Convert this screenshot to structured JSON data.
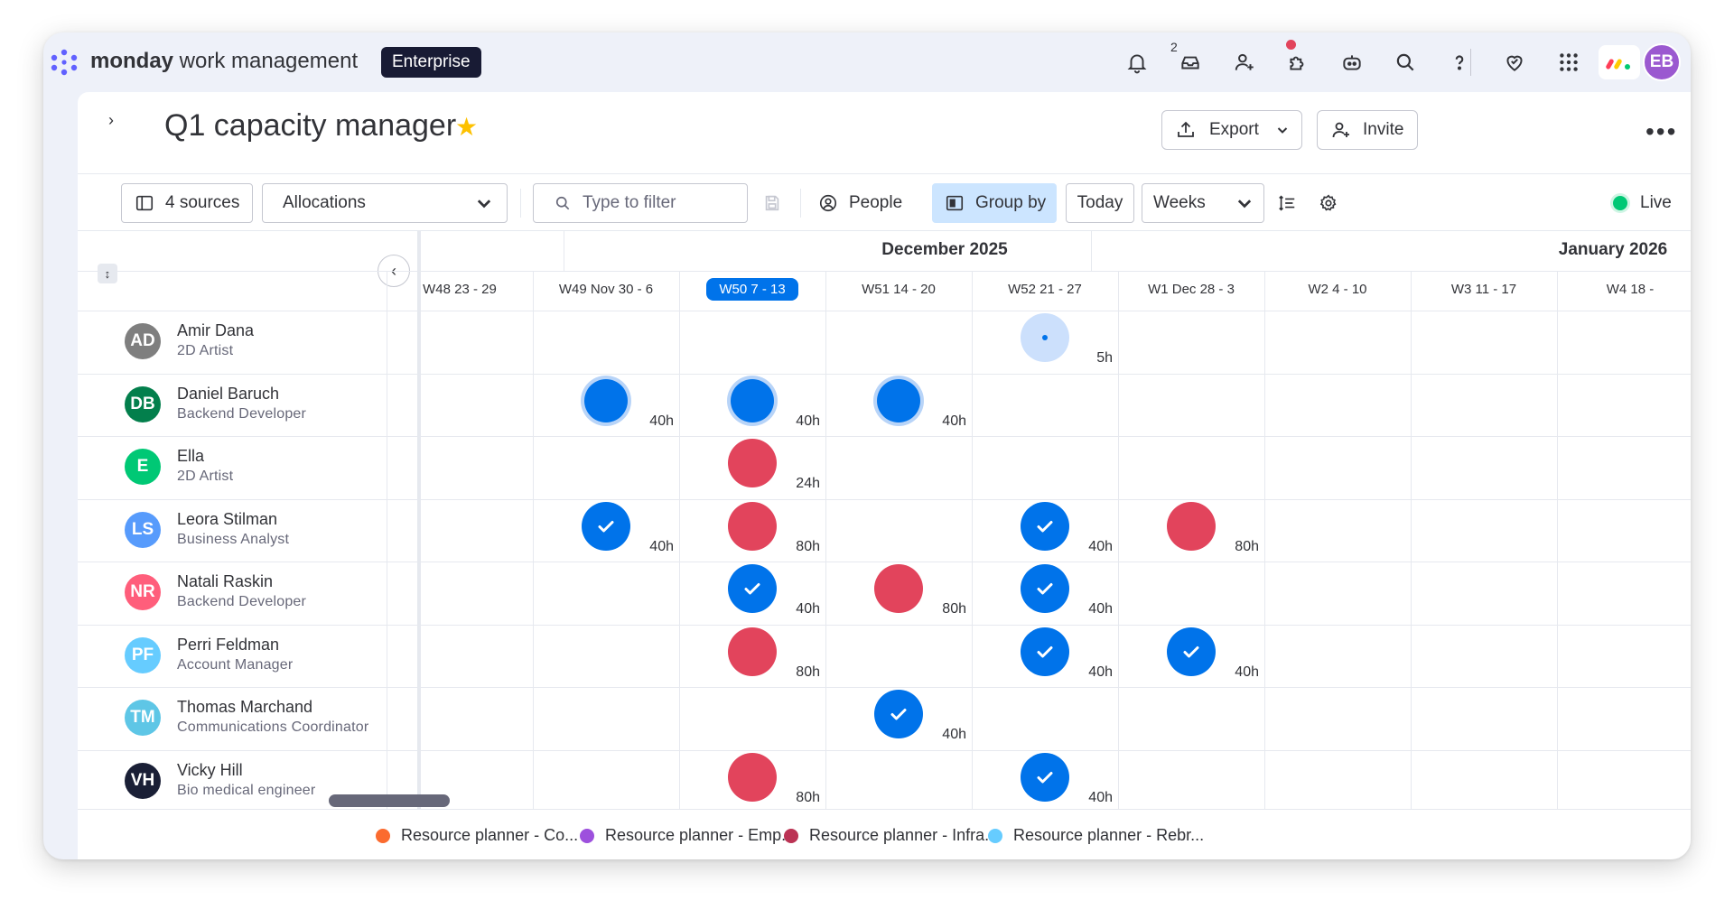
{
  "app": {
    "brand_bold": "monday",
    "brand_rest": " work management",
    "plan_badge": "Enterprise",
    "notification_count": "2",
    "user_initials": "EB"
  },
  "page": {
    "title": "Q1 capacity manager",
    "export_label": "Export",
    "invite_label": "Invite"
  },
  "toolbar": {
    "sources_label": "4 sources",
    "view_select": "Allocations",
    "filter_placeholder": "Type to filter",
    "people_label": "People",
    "group_by_label": "Group by",
    "today_label": "Today",
    "range_select": "Weeks",
    "live_label": "Live"
  },
  "timeline": {
    "months": [
      "December 2025",
      "January 2026"
    ],
    "weeks": [
      "W48 23 - 29",
      "W49 Nov 30 - 6",
      "W50 7 - 13",
      "W51 14 - 20",
      "W52 21 - 27",
      "W1 Dec 28 - 3",
      "W2 4 - 10",
      "W3 11 - 17",
      "W4 18 -"
    ],
    "current_week_index": 2
  },
  "people": [
    {
      "initials": "AD",
      "name": "Amir Dana",
      "role": "2D Artist",
      "color": "#7f7f7f",
      "allocations": [
        {
          "week": 4,
          "type": "light",
          "hours": "5h"
        }
      ]
    },
    {
      "initials": "DB",
      "name": "Daniel Baruch",
      "role": "Backend Developer",
      "color": "#037f4c",
      "allocations": [
        {
          "week": 1,
          "type": "blue-ring",
          "hours": "40h"
        },
        {
          "week": 2,
          "type": "blue-ring",
          "hours": "40h"
        },
        {
          "week": 3,
          "type": "blue-ring",
          "hours": "40h"
        }
      ]
    },
    {
      "initials": "E",
      "name": "Ella",
      "role": "2D Artist",
      "color": "#00c875",
      "allocations": [
        {
          "week": 2,
          "type": "red",
          "hours": "24h"
        }
      ]
    },
    {
      "initials": "LS",
      "name": "Leora Stilman",
      "role": "Business Analyst",
      "color": "#579bfc",
      "allocations": [
        {
          "week": 1,
          "type": "check",
          "hours": "40h"
        },
        {
          "week": 2,
          "type": "red",
          "hours": "80h"
        },
        {
          "week": 4,
          "type": "check",
          "hours": "40h"
        },
        {
          "week": 5,
          "type": "red",
          "hours": "80h"
        }
      ]
    },
    {
      "initials": "NR",
      "name": "Natali Raskin",
      "role": "Backend Developer",
      "color": "#ff5e7b",
      "allocations": [
        {
          "week": 2,
          "type": "check",
          "hours": "40h"
        },
        {
          "week": 3,
          "type": "red",
          "hours": "80h"
        },
        {
          "week": 4,
          "type": "check",
          "hours": "40h"
        }
      ]
    },
    {
      "initials": "PF",
      "name": "Perri Feldman",
      "role": "Account Manager",
      "color": "#66ccff",
      "allocations": [
        {
          "week": 2,
          "type": "red",
          "hours": "80h"
        },
        {
          "week": 4,
          "type": "check",
          "hours": "40h"
        },
        {
          "week": 5,
          "type": "check",
          "hours": "40h"
        }
      ]
    },
    {
      "initials": "TM",
      "name": "Thomas Marchand",
      "role": "Communications Coordinator",
      "color": "#5ec6e6",
      "allocations": [
        {
          "week": 3,
          "type": "check",
          "hours": "40h"
        }
      ]
    },
    {
      "initials": "VH",
      "name": "Vicky Hill",
      "role": "Bio medical engineer",
      "color": "#1a1f36",
      "allocations": [
        {
          "week": 2,
          "type": "red",
          "hours": "80h"
        },
        {
          "week": 4,
          "type": "check",
          "hours": "40h"
        }
      ]
    }
  ],
  "legend": [
    {
      "label": "Resource planner - Co...",
      "color": "#fb6b2f"
    },
    {
      "label": "Resource planner - Emp...",
      "color": "#9d50dd"
    },
    {
      "label": "Resource planner - Infra...",
      "color": "#bb3354"
    },
    {
      "label": "Resource planner - Rebr...",
      "color": "#66ccff"
    }
  ],
  "colors": {
    "accent": "#0073ea",
    "danger": "#e2445c",
    "live": "#00c875"
  }
}
